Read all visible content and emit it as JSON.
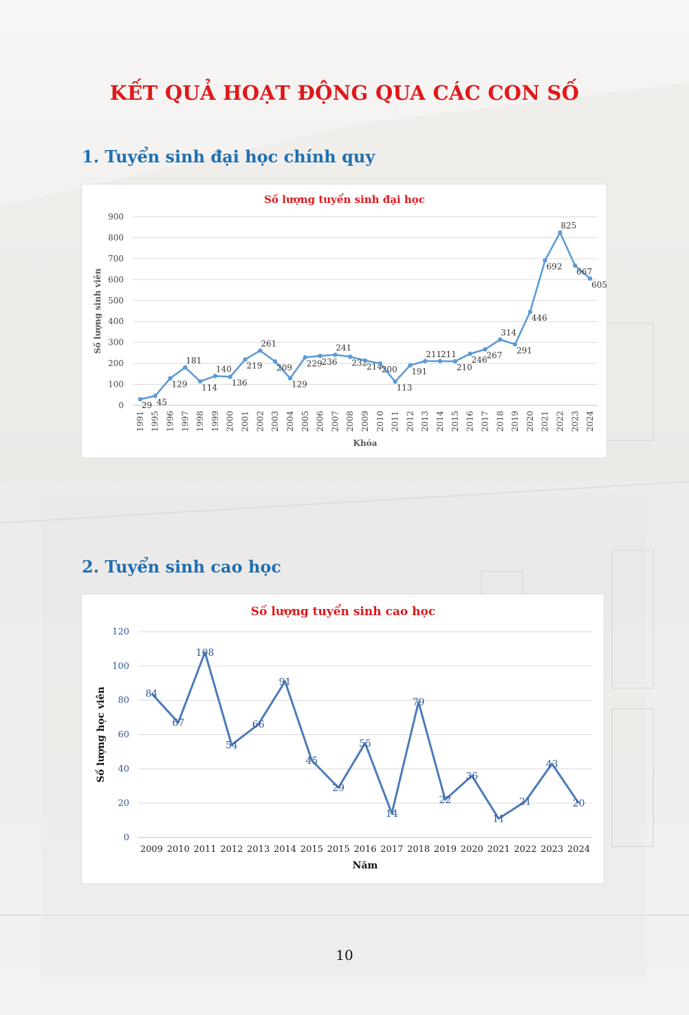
{
  "page": {
    "title": "KẾT QUẢ HOẠT ĐỘNG QUA CÁC CON SỐ",
    "page_number": "10"
  },
  "sections": [
    {
      "heading": "1. Tuyển sinh đại học chính quy"
    },
    {
      "heading": "2. Tuyển sinh cao học"
    }
  ],
  "colors": {
    "title": "#e0181b",
    "heading": "#1f6fb2",
    "chart1_line": "#5b9bd5",
    "chart2_line": "#4a7ab8",
    "chart2_text": "#2e5597"
  },
  "chart_data": [
    {
      "type": "line",
      "title": "Số lượng tuyển sinh đại học",
      "xlabel": "Khóa",
      "ylabel": "Số lượng sinh viên",
      "ylim": [
        0,
        900
      ],
      "yticks": [
        0,
        100,
        200,
        300,
        400,
        500,
        600,
        700,
        800,
        900
      ],
      "grid": true,
      "categories": [
        "1991",
        "1995",
        "1996",
        "1997",
        "1998",
        "1999",
        "2000",
        "2001",
        "2002",
        "2003",
        "2004",
        "2005",
        "2006",
        "2007",
        "2008",
        "2009",
        "2010",
        "2011",
        "2012",
        "2013",
        "2014",
        "2015",
        "2016",
        "2017",
        "2018",
        "2019",
        "2020",
        "2021",
        "2022",
        "2023",
        "2024"
      ],
      "series": [
        {
          "values": [
            29,
            45,
            129,
            181,
            114,
            140,
            136,
            219,
            261,
            209,
            129,
            229,
            236,
            241,
            232,
            214,
            200,
            113,
            191,
            211,
            211,
            210,
            246,
            267,
            314,
            291,
            446,
            692,
            825,
            667,
            605
          ],
          "labels": [
            "29",
            "45",
            "129",
            "181",
            "114",
            "140",
            "136",
            "219",
            "261",
            "209",
            "129",
            "229",
            "236",
            "241",
            "232",
            "214",
            "200",
            "113",
            "191",
            "211",
            "211",
            "210",
            "246",
            "267",
            "314",
            "291",
            "446",
            "692",
            "825",
            "667",
            "605"
          ]
        }
      ]
    },
    {
      "type": "line",
      "title": "Số lượng tuyển sinh cao học",
      "xlabel": "Năm",
      "ylabel": "Số lượng học viên",
      "ylim": [
        0,
        120
      ],
      "yticks": [
        0,
        20,
        40,
        60,
        80,
        100,
        120
      ],
      "grid": true,
      "categories": [
        "2009",
        "2010",
        "2011",
        "2012",
        "2013",
        "2014",
        "2015",
        "2015",
        "2016",
        "2017",
        "2018",
        "2019",
        "2020",
        "2021",
        "2022",
        "2023",
        "2024"
      ],
      "series": [
        {
          "values": [
            84,
            67,
            108,
            54,
            66,
            91,
            45,
            29,
            55,
            14,
            79,
            22,
            36,
            11,
            21,
            43,
            20
          ],
          "labels": [
            "84",
            "67",
            "108",
            "54",
            "66",
            "91",
            "45",
            "29",
            "55",
            "14",
            "79",
            "22",
            "36",
            "11",
            "21",
            "43",
            "20"
          ]
        }
      ]
    }
  ]
}
